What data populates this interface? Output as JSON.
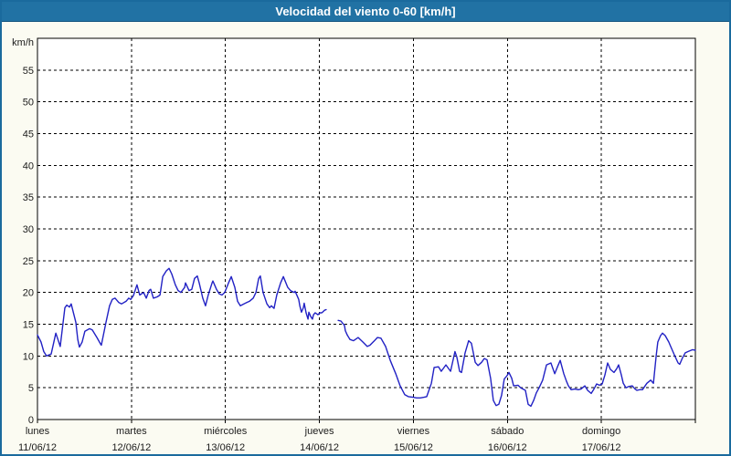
{
  "window": {
    "title": "Velocidad del viento 0-60 [km/h]"
  },
  "colors": {
    "title_bar": "#2172a4",
    "title_text": "#ffffff",
    "window_border": "#1a6a9d",
    "window_background": "#fbfbf2",
    "plot_background": "#ffffff",
    "grid": "#000000",
    "axis": "#000000",
    "label": "#1a1a1a",
    "line": "#2121c4"
  },
  "chart_data": {
    "type": "line",
    "title": "Velocidad del viento 0-60 [km/h]",
    "ylabel": "km/h",
    "ylim": [
      0,
      60
    ],
    "yticks": [
      0,
      5,
      10,
      15,
      20,
      25,
      30,
      35,
      40,
      45,
      50,
      55
    ],
    "xlim_hours": [
      0,
      168
    ],
    "xtick_interval_hours": 24,
    "grid": true,
    "legend": "none",
    "x_categories": [
      {
        "day": "lunes",
        "date": "11/06/12"
      },
      {
        "day": "martes",
        "date": "12/06/12"
      },
      {
        "day": "miércoles",
        "date": "13/06/12"
      },
      {
        "day": "jueves",
        "date": "14/06/12"
      },
      {
        "day": "viernes",
        "date": "15/06/12"
      },
      {
        "day": "sábado",
        "date": "16/06/12"
      },
      {
        "day": "domingo",
        "date": "17/06/12"
      }
    ],
    "series": [
      {
        "name": "Velocidad del viento (km/h)",
        "color": "#2121c4",
        "segments": [
          [
            [
              0,
              13.3
            ],
            [
              0.9,
              12.2
            ],
            [
              1.6,
              10.7
            ],
            [
              2.3,
              10.0
            ],
            [
              3.5,
              10.3
            ],
            [
              4.7,
              13.6
            ],
            [
              5.4,
              12.3
            ],
            [
              5.8,
              11.5
            ],
            [
              7.0,
              17.6
            ],
            [
              7.5,
              18.0
            ],
            [
              8.2,
              17.7
            ],
            [
              8.6,
              18.2
            ],
            [
              9.8,
              15.3
            ],
            [
              10.3,
              12.6
            ],
            [
              10.7,
              11.4
            ],
            [
              11.4,
              12.2
            ],
            [
              12.1,
              13.9
            ],
            [
              13.3,
              14.3
            ],
            [
              14.0,
              14.1
            ],
            [
              15.2,
              12.9
            ],
            [
              16.1,
              11.9
            ],
            [
              16.3,
              11.7
            ],
            [
              17.5,
              15.3
            ],
            [
              18.4,
              17.9
            ],
            [
              19.1,
              18.9
            ],
            [
              19.8,
              19.1
            ],
            [
              20.8,
              18.4
            ],
            [
              21.5,
              18.2
            ],
            [
              22.6,
              18.6
            ],
            [
              23.3,
              19.1
            ],
            [
              23.8,
              18.9
            ],
            [
              24.5,
              19.5
            ],
            [
              25.4,
              21.2
            ],
            [
              26.1,
              19.6
            ],
            [
              27.1,
              20.0
            ],
            [
              27.8,
              19.1
            ],
            [
              28.5,
              20.3
            ],
            [
              28.9,
              20.5
            ],
            [
              29.6,
              19.1
            ],
            [
              30.6,
              19.3
            ],
            [
              31.3,
              19.6
            ],
            [
              32.0,
              22.5
            ],
            [
              32.9,
              23.4
            ],
            [
              33.6,
              23.8
            ],
            [
              34.3,
              22.9
            ],
            [
              35.2,
              21.2
            ],
            [
              35.9,
              20.3
            ],
            [
              36.6,
              20.0
            ],
            [
              37.6,
              20.8
            ],
            [
              37.8,
              21.5
            ],
            [
              38.7,
              20.3
            ],
            [
              39.4,
              20.5
            ],
            [
              40.1,
              22.2
            ],
            [
              40.8,
              22.6
            ],
            [
              41.3,
              21.5
            ],
            [
              42.2,
              19.1
            ],
            [
              42.9,
              17.9
            ],
            [
              43.6,
              19.6
            ],
            [
              44.6,
              21.5
            ],
            [
              44.8,
              21.8
            ],
            [
              45.7,
              20.5
            ],
            [
              46.4,
              19.8
            ],
            [
              47.1,
              19.6
            ],
            [
              47.8,
              20.0
            ],
            [
              48.8,
              21.5
            ],
            [
              49.5,
              22.5
            ],
            [
              50.4,
              20.8
            ],
            [
              51.1,
              18.6
            ],
            [
              51.8,
              17.9
            ],
            [
              52.7,
              18.2
            ],
            [
              53.4,
              18.4
            ],
            [
              54.1,
              18.6
            ],
            [
              55.1,
              19.1
            ],
            [
              55.8,
              20.0
            ],
            [
              56.5,
              22.2
            ],
            [
              56.9,
              22.6
            ],
            [
              57.6,
              20.0
            ],
            [
              58.6,
              18.2
            ],
            [
              59.3,
              17.6
            ],
            [
              59.7,
              17.9
            ],
            [
              60.4,
              17.5
            ],
            [
              61.1,
              19.6
            ],
            [
              62.1,
              21.5
            ],
            [
              62.8,
              22.5
            ],
            [
              63.9,
              20.8
            ],
            [
              64.6,
              20.3
            ],
            [
              65.6,
              20.0
            ],
            [
              65.8,
              20.2
            ],
            [
              66.7,
              18.9
            ],
            [
              67.0,
              17.9
            ],
            [
              67.4,
              16.9
            ],
            [
              67.9,
              17.6
            ],
            [
              68.1,
              18.3
            ],
            [
              68.6,
              16.8
            ],
            [
              69.1,
              15.8
            ],
            [
              69.3,
              16.9
            ],
            [
              69.8,
              16.2
            ],
            [
              70.2,
              15.8
            ],
            [
              70.5,
              16.5
            ],
            [
              70.9,
              16.8
            ],
            [
              71.4,
              16.6
            ],
            [
              71.6,
              16.5
            ],
            [
              72.1,
              16.8
            ],
            [
              72.6,
              16.8
            ],
            [
              72.8,
              16.9
            ],
            [
              73.3,
              17.2
            ],
            [
              73.7,
              17.3
            ]
          ],
          [
            [
              76.8,
              15.6
            ],
            [
              77.5,
              15.5
            ],
            [
              78.4,
              14.8
            ],
            [
              78.6,
              14.0
            ],
            [
              79.1,
              13.3
            ],
            [
              79.8,
              12.6
            ],
            [
              80.7,
              12.4
            ],
            [
              81.9,
              12.9
            ],
            [
              83.1,
              12.2
            ],
            [
              84.2,
              11.5
            ],
            [
              84.9,
              11.7
            ],
            [
              85.9,
              12.3
            ],
            [
              86.8,
              12.9
            ],
            [
              87.7,
              12.8
            ],
            [
              88.9,
              11.5
            ],
            [
              90.1,
              9.3
            ],
            [
              91.5,
              7.2
            ],
            [
              92.6,
              5.3
            ],
            [
              93.8,
              3.9
            ],
            [
              94.7,
              3.6
            ],
            [
              95.9,
              3.5
            ],
            [
              96.8,
              3.4
            ],
            [
              97.8,
              3.4
            ],
            [
              98.7,
              3.5
            ],
            [
              99.4,
              3.6
            ],
            [
              100.6,
              5.7
            ],
            [
              101.3,
              8.2
            ],
            [
              102.4,
              8.3
            ],
            [
              103.1,
              7.6
            ],
            [
              104.3,
              8.6
            ],
            [
              105.5,
              7.6
            ],
            [
              106.6,
              10.7
            ],
            [
              107.1,
              9.8
            ],
            [
              107.8,
              7.6
            ],
            [
              108.3,
              7.4
            ],
            [
              109.2,
              10.5
            ],
            [
              110.1,
              12.4
            ],
            [
              110.8,
              12.0
            ],
            [
              111.8,
              9.0
            ],
            [
              112.5,
              8.5
            ],
            [
              113.4,
              9.0
            ],
            [
              114.1,
              9.6
            ],
            [
              114.8,
              9.4
            ],
            [
              115.7,
              6.5
            ],
            [
              116.4,
              3.0
            ],
            [
              117.1,
              2.2
            ],
            [
              117.8,
              2.4
            ],
            [
              118.5,
              3.8
            ],
            [
              119.2,
              6.4
            ],
            [
              119.9,
              6.9
            ],
            [
              120.4,
              7.4
            ],
            [
              121.1,
              6.5
            ],
            [
              121.6,
              5.3
            ],
            [
              122.7,
              5.4
            ],
            [
              123.4,
              5.0
            ],
            [
              124.6,
              4.6
            ],
            [
              125.3,
              2.4
            ],
            [
              126.0,
              2.1
            ],
            [
              126.7,
              3.0
            ],
            [
              127.4,
              4.2
            ],
            [
              128.1,
              5.0
            ],
            [
              129.0,
              6.2
            ],
            [
              130.0,
              8.6
            ],
            [
              131.1,
              8.9
            ],
            [
              132.1,
              7.2
            ],
            [
              132.8,
              8.3
            ],
            [
              133.5,
              9.3
            ],
            [
              134.4,
              7.2
            ],
            [
              135.1,
              6.0
            ],
            [
              135.6,
              5.3
            ],
            [
              136.3,
              4.7
            ],
            [
              137.2,
              4.8
            ],
            [
              138.1,
              4.7
            ],
            [
              138.8,
              4.8
            ],
            [
              139.8,
              5.3
            ],
            [
              140.5,
              4.6
            ],
            [
              141.4,
              4.1
            ],
            [
              142.1,
              4.8
            ],
            [
              142.8,
              5.6
            ],
            [
              143.5,
              5.4
            ],
            [
              144.2,
              5.6
            ],
            [
              144.9,
              7.0
            ],
            [
              145.6,
              8.9
            ],
            [
              146.3,
              7.9
            ],
            [
              147.2,
              7.4
            ],
            [
              147.9,
              8.0
            ],
            [
              148.4,
              8.6
            ],
            [
              149.1,
              7.0
            ],
            [
              149.6,
              5.7
            ],
            [
              150.3,
              5.0
            ],
            [
              151.0,
              5.2
            ],
            [
              151.9,
              5.3
            ],
            [
              152.6,
              4.8
            ],
            [
              153.1,
              4.6
            ],
            [
              153.8,
              4.7
            ],
            [
              154.5,
              4.7
            ],
            [
              155.6,
              5.7
            ],
            [
              156.6,
              6.2
            ],
            [
              157.3,
              5.7
            ],
            [
              158.0,
              10.0
            ],
            [
              158.4,
              12.2
            ],
            [
              159.1,
              13.2
            ],
            [
              159.6,
              13.6
            ],
            [
              160.3,
              13.2
            ],
            [
              161.2,
              12.2
            ],
            [
              161.9,
              11.2
            ],
            [
              162.6,
              10.2
            ],
            [
              163.6,
              8.9
            ],
            [
              164.0,
              8.7
            ],
            [
              164.7,
              9.7
            ],
            [
              165.4,
              10.5
            ],
            [
              166.1,
              10.7
            ],
            [
              167.3,
              11.0
            ],
            [
              168.0,
              10.9
            ]
          ]
        ]
      }
    ]
  }
}
